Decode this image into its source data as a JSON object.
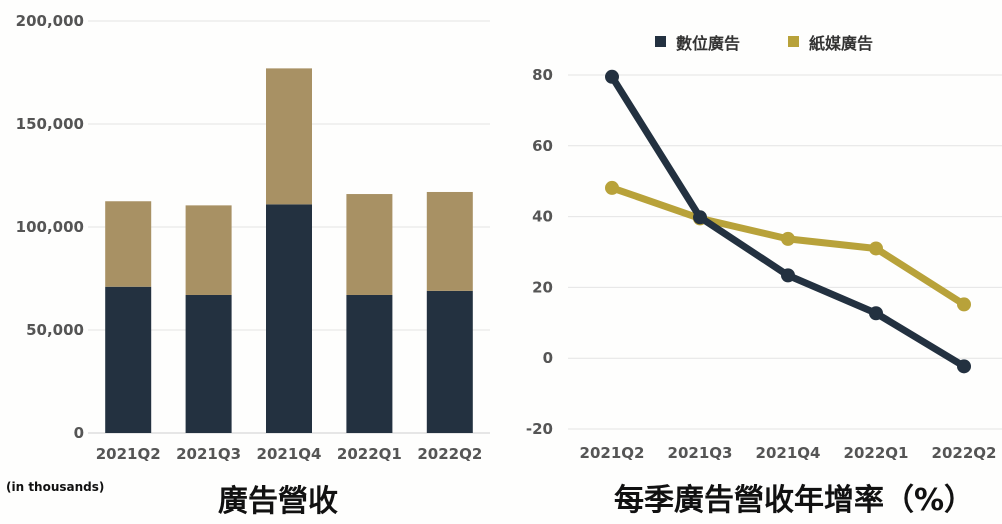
{
  "chart_data": [
    {
      "type": "bar",
      "stacked": true,
      "caption": "廣告營收",
      "unit_note": "(in thousands)",
      "categories": [
        "2021Q2",
        "2021Q3",
        "2021Q4",
        "2022Q1",
        "2022Q2"
      ],
      "series": [
        {
          "values": [
            71000,
            67000,
            111000,
            67000,
            69000
          ],
          "color": "#233140"
        },
        {
          "values": [
            41500,
            43500,
            66000,
            49000,
            48000
          ],
          "color": "#a89164"
        }
      ],
      "y_ticks": [
        "0",
        "50,000",
        "100,000",
        "150,000",
        "200,000"
      ],
      "ylim": [
        0,
        200000
      ],
      "grid": true
    },
    {
      "type": "line",
      "caption": "每季廣告營收年增率（%）",
      "legend_position": "top-center",
      "categories": [
        "2021Q2",
        "2021Q3",
        "2021Q4",
        "2022Q1",
        "2022Q2"
      ],
      "series": [
        {
          "name": "數位廣告",
          "values": [
            79.5,
            39.8,
            23.4,
            12.7,
            -2.3
          ],
          "color": "#233140"
        },
        {
          "name": "紙媒廣告",
          "values": [
            48.1,
            39.5,
            33.7,
            31.0,
            15.2
          ],
          "color": "#b8a23a"
        }
      ],
      "y_ticks": [
        "-20",
        "0",
        "20",
        "40",
        "60",
        "80"
      ],
      "ylim": [
        -20,
        80
      ],
      "grid": true
    }
  ]
}
